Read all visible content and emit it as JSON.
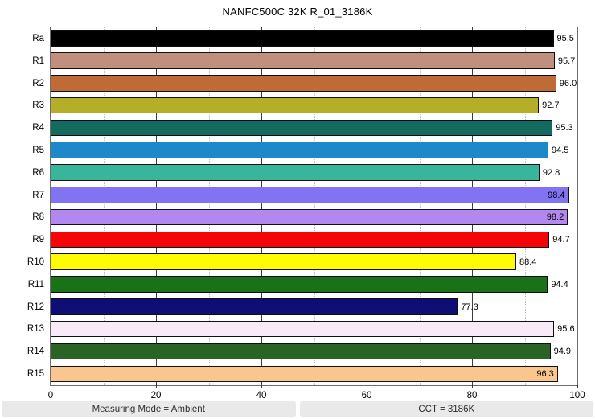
{
  "title": "NANFC500C 32K R_01_3186K",
  "chart_data": {
    "type": "bar",
    "orientation": "horizontal",
    "title": "NANFC500C 32K R_01_3186K",
    "xlabel": "",
    "ylabel": "",
    "xlim": [
      0,
      100
    ],
    "grid": true,
    "x_major_ticks": [
      0,
      20,
      40,
      60,
      80,
      100
    ],
    "x_minor_gridlines": [
      10,
      30,
      50,
      70,
      90
    ],
    "categories": [
      "Ra",
      "R1",
      "R2",
      "R3",
      "R4",
      "R5",
      "R6",
      "R7",
      "R8",
      "R9",
      "R10",
      "R11",
      "R12",
      "R13",
      "R14",
      "R15"
    ],
    "values": [
      95.5,
      95.7,
      96.0,
      92.7,
      95.3,
      94.5,
      92.8,
      98.4,
      98.2,
      94.7,
      88.4,
      94.4,
      77.3,
      95.6,
      94.9,
      96.3
    ],
    "value_labels": [
      "95.5",
      "95.7",
      "96.0",
      "92.7",
      "95.3",
      "94.5",
      "92.8",
      "98.4",
      "98.2",
      "94.7",
      "88.4",
      "94.4",
      "77.3",
      "95.6",
      "94.9",
      "96.3"
    ],
    "bar_colors": [
      "#000000",
      "#c08f7e",
      "#c06a38",
      "#b4ae29",
      "#156a5f",
      "#1e88c8",
      "#38b69b",
      "#8173f1",
      "#b287f0",
      "#f50505",
      "#fffc00",
      "#1b7116",
      "#0e0e74",
      "#f9eaf8",
      "#2b6327",
      "#fbc68d"
    ],
    "value_label_inside": [
      false,
      false,
      false,
      false,
      false,
      false,
      false,
      true,
      true,
      false,
      false,
      false,
      false,
      false,
      false,
      true
    ],
    "legend": null
  },
  "statusbar": {
    "left": "Measuring Mode = Ambient",
    "right": "CCT = 3186K"
  }
}
